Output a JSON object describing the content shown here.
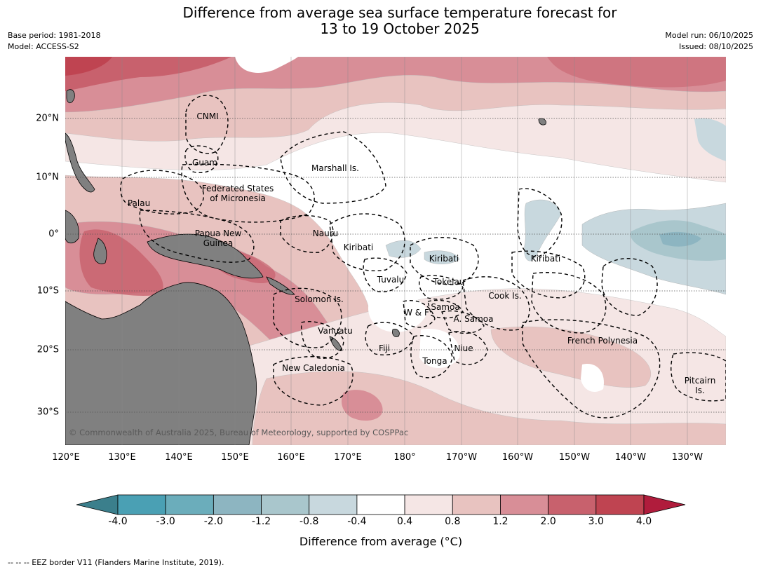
{
  "title": {
    "line1": "Difference from average sea surface temperature forecast for",
    "line2": "13 to 19 October 2025"
  },
  "meta": {
    "base_period": "Base period: 1981-2018",
    "model": "Model: ACCESS-S2",
    "model_run": "Model run: 06/10/2025",
    "issued": "Issued: 08/10/2025"
  },
  "axes": {
    "lon_labels": [
      "120°E",
      "130°E",
      "140°E",
      "150°E",
      "160°E",
      "170°E",
      "180°",
      "170°W",
      "160°W",
      "150°W",
      "140°W",
      "130°W"
    ],
    "lat_labels": [
      "20°N",
      "10°N",
      "0°",
      "10°S",
      "20°S",
      "30°S"
    ]
  },
  "places": {
    "cnmi": "CNMI",
    "guam": "Guam",
    "marshall": "Marshall Is.",
    "fsm_1": "Federated States",
    "fsm_2": "of Micronesia",
    "palau": "Palau",
    "png_1": "Papua New",
    "png_2": "Guinea",
    "nauru": "Nauru",
    "kiribati_w": "Kiribati",
    "kiribati_c": "Kiribati",
    "kiribati_e": "Kiribati",
    "tuvalu": "Tuvalu",
    "tokelau": "Tokelau",
    "cook": "Cook Is.",
    "solomon": "Solomon Is.",
    "wf": "W & F",
    "samoa": "Samoa",
    "asamoa": "A. Samoa",
    "vanuatu": "Vanuatu",
    "fiji": "Fiji",
    "niue": "Niue",
    "tonga": "Tonga",
    "french_polynesia": "French Polynesia",
    "newcal": "New Caledonia",
    "pitcairn_1": "Pitcairn",
    "pitcairn_2": "Is."
  },
  "copyright": "© Commonwealth of Australia 2025, Bureau of Meteorology, supported by COSPPac",
  "colorbar": {
    "title": "Difference from average (°C)",
    "ticks": [
      "-4.0",
      "-3.0",
      "-2.0",
      "-1.2",
      "-0.8",
      "-0.4",
      "0.4",
      "0.8",
      "1.2",
      "2.0",
      "3.0",
      "4.0"
    ],
    "colors": {
      "under": "#3b7f8c",
      "bins": [
        "#4aa0b4",
        "#6badbb",
        "#8db5c1",
        "#a9c6cc",
        "#c8d8de",
        "#ffffff",
        "#f5e6e5",
        "#e8c3c0",
        "#d88e97",
        "#c8616d",
        "#bf4451"
      ],
      "over": "#b01c3c"
    }
  },
  "footer": "--  --  -- EEZ border V11 (Flanders Marine Institute, 2019)."
}
